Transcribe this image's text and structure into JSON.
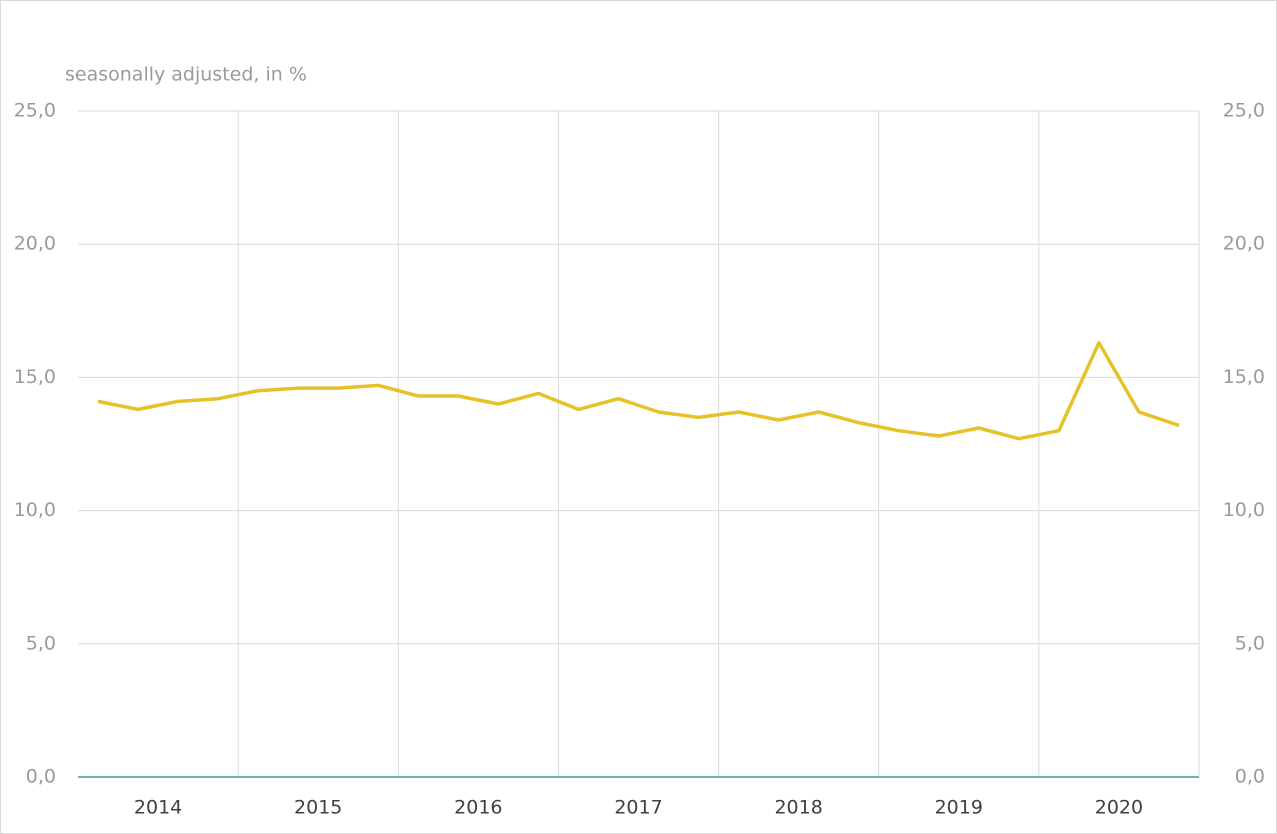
{
  "chart_data": {
    "type": "line",
    "subtitle": "seasonally adjusted, in %",
    "categories": [
      "2014",
      null,
      null,
      null,
      "2015",
      null,
      null,
      null,
      "2016",
      null,
      null,
      null,
      "2017",
      null,
      null,
      null,
      "2018",
      null,
      null,
      null,
      "2019",
      null,
      null,
      null,
      "2020",
      null,
      null,
      null
    ],
    "series": [
      {
        "color": "#e6c229",
        "values": [
          14.1,
          13.8,
          14.1,
          14.2,
          14.5,
          14.6,
          14.6,
          14.7,
          14.3,
          14.3,
          14.0,
          14.4,
          13.8,
          14.2,
          13.7,
          13.5,
          13.7,
          13.4,
          13.7,
          13.3,
          13.0,
          12.8,
          13.1,
          12.7,
          13.0,
          16.3,
          13.7,
          13.2
        ]
      }
    ],
    "ylim": [
      0,
      25
    ],
    "yticks": [
      {
        "value": 0,
        "label": "0,0"
      },
      {
        "value": 5,
        "label": "5,0"
      },
      {
        "value": 10,
        "label": "10,0"
      },
      {
        "value": 15,
        "label": "15,0"
      },
      {
        "value": 20,
        "label": "20,0"
      },
      {
        "value": 25,
        "label": "25,0"
      }
    ],
    "y2lim": [
      0,
      25
    ],
    "y2ticks": [
      {
        "value": 0,
        "label": "0,0"
      },
      {
        "value": 5,
        "label": "5,0"
      },
      {
        "value": 10,
        "label": "10,0"
      },
      {
        "value": 15,
        "label": "15,0"
      },
      {
        "value": 20,
        "label": "20,0"
      },
      {
        "value": 25,
        "label": "25,0"
      }
    ],
    "grid": true
  }
}
